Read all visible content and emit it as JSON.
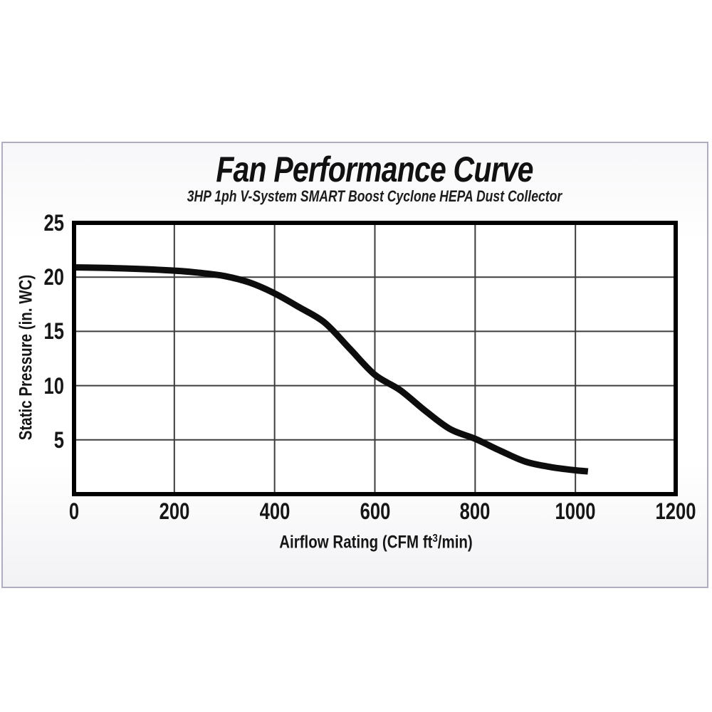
{
  "page": {
    "background": "#ffffff"
  },
  "card": {
    "border_color": "#b0adc0"
  },
  "chart_data": {
    "type": "line",
    "title": "Fan Performance Curve",
    "subtitle": "3HP 1ph V-System SMART Boost Cyclone HEPA Dust Collector",
    "xlabel": {
      "prefix": "Airflow Rating (CFM ft",
      "sup": "3",
      "suffix": "/min)"
    },
    "xlabel_full": "Airflow Rating (CFM ft³/min)",
    "ylabel": "Static Pressure (in. WC)",
    "xlim": [
      0,
      1200
    ],
    "ylim": [
      0,
      25
    ],
    "xticks": [
      0,
      200,
      400,
      600,
      800,
      1000,
      1200
    ],
    "yticks": [
      5,
      10,
      15,
      20,
      25
    ],
    "grid": true,
    "legend_position": "none",
    "line_color": "#0d0d0d",
    "line_width": 9,
    "grid_color": "#3d3d3d",
    "frame_color": "#000000",
    "plot_background": "#ffffff",
    "series": [
      {
        "name": "fan performance curve",
        "x": [
          0,
          100,
          200,
          250,
          300,
          350,
          400,
          450,
          500,
          550,
          600,
          650,
          700,
          750,
          800,
          850,
          900,
          950,
          1000,
          1025
        ],
        "y": [
          20.9,
          20.8,
          20.6,
          20.4,
          20.1,
          19.5,
          18.5,
          17.2,
          15.8,
          13.4,
          11.0,
          9.6,
          7.7,
          6.0,
          5.1,
          4.0,
          3.0,
          2.5,
          2.2,
          2.1
        ]
      }
    ]
  }
}
